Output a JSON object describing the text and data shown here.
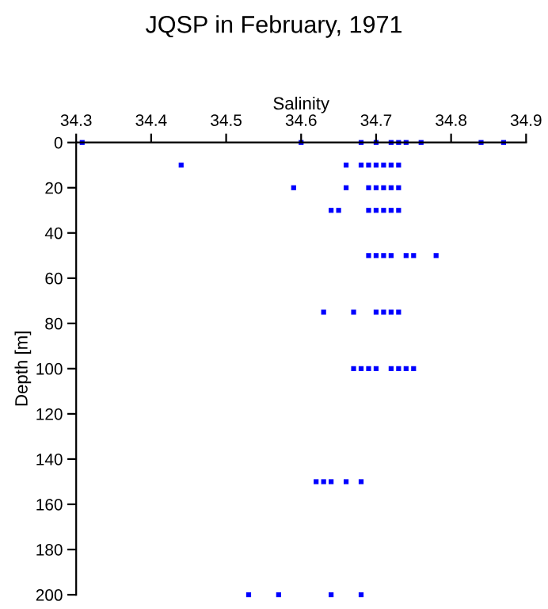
{
  "chart_data": {
    "type": "scatter",
    "title": "JQSP in February, 1971",
    "xlabel": "Salinity",
    "ylabel": "Depth [m]",
    "series": [
      {
        "color": "#0000ff",
        "x": [
          34.308,
          34.6,
          34.68,
          34.7,
          34.72,
          34.73,
          34.74,
          34.76,
          34.84,
          34.87,
          34.44,
          34.66,
          34.68,
          34.69,
          34.7,
          34.71,
          34.72,
          34.73,
          34.59,
          34.66,
          34.69,
          34.7,
          34.71,
          34.72,
          34.73,
          34.64,
          34.65,
          34.69,
          34.7,
          34.71,
          34.72,
          34.73,
          34.69,
          34.7,
          34.71,
          34.72,
          34.74,
          34.75,
          34.78,
          34.63,
          34.67,
          34.7,
          34.71,
          34.72,
          34.73,
          34.67,
          34.68,
          34.69,
          34.7,
          34.72,
          34.73,
          34.74,
          34.75,
          34.62,
          34.63,
          34.64,
          34.66,
          34.68,
          34.53,
          34.57,
          34.64,
          34.68
        ],
        "values": [
          0,
          0,
          0,
          0,
          0,
          0,
          0,
          0,
          0,
          0,
          10,
          10,
          10,
          10,
          10,
          10,
          10,
          10,
          20,
          20,
          20,
          20,
          20,
          20,
          20,
          30,
          30,
          30,
          30,
          30,
          30,
          30,
          50,
          50,
          50,
          50,
          50,
          50,
          50,
          75,
          75,
          75,
          75,
          75,
          75,
          100,
          100,
          100,
          100,
          100,
          100,
          100,
          100,
          150,
          150,
          150,
          150,
          150,
          200,
          200,
          200,
          200
        ]
      }
    ],
    "xlim": [
      34.3,
      34.9
    ],
    "xticks": [
      34.3,
      34.4,
      34.5,
      34.6,
      34.7,
      34.8,
      34.9
    ],
    "ylim": [
      200,
      0
    ],
    "yticks": [
      0,
      20,
      40,
      60,
      80,
      100,
      120,
      140,
      160,
      180,
      200
    ],
    "marker": "square",
    "grid": false,
    "legend": false
  }
}
